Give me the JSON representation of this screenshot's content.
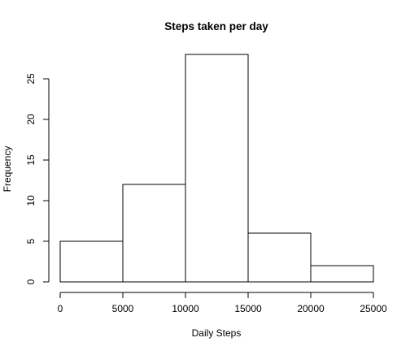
{
  "chart_data": {
    "type": "bar",
    "subtype": "histogram",
    "title": "Steps taken per day",
    "xlabel": "Daily Steps",
    "ylabel": "Frequency",
    "bins": [
      {
        "from": 0,
        "to": 5000,
        "count": 5
      },
      {
        "from": 5000,
        "to": 10000,
        "count": 12
      },
      {
        "from": 10000,
        "to": 15000,
        "count": 28
      },
      {
        "from": 15000,
        "to": 20000,
        "count": 6
      },
      {
        "from": 20000,
        "to": 25000,
        "count": 2
      }
    ],
    "xlim": [
      0,
      25000
    ],
    "ylim": [
      0,
      28
    ],
    "x_ticks": [
      "0",
      "5000",
      "10000",
      "15000",
      "20000",
      "25000"
    ],
    "y_ticks": [
      "0",
      "5",
      "10",
      "15",
      "20",
      "25"
    ],
    "grid": false,
    "bar_fill": "#ffffff",
    "bar_stroke": "#000000"
  }
}
